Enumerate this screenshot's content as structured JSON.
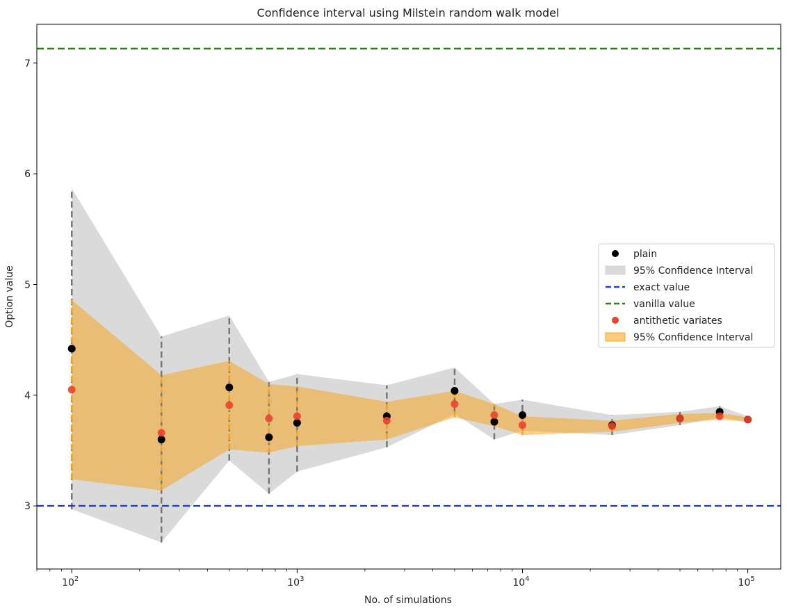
{
  "chart_data": {
    "type": "scatter",
    "title": "Confidence interval using Milstein random walk model",
    "xlabel": "No. of simulations",
    "ylabel": "Option value",
    "xscale": "log",
    "xlim": [
      70,
      140000
    ],
    "ylim": [
      2.43,
      7.35
    ],
    "yticks": [
      "3",
      "4",
      "5",
      "6",
      "7"
    ],
    "xticks": [
      "100",
      "1000",
      "10000",
      "100000"
    ],
    "xtick_base": "10",
    "xtick_exponents": [
      "2",
      "3",
      "4",
      "5"
    ],
    "legend_position": "center-right",
    "x": [
      100,
      250,
      500,
      750,
      1000,
      2500,
      5000,
      7500,
      10000,
      25000,
      50000,
      75000,
      100000
    ],
    "plain": {
      "name": "plain",
      "color": "#000000",
      "values": [
        4.42,
        3.6,
        4.07,
        3.62,
        3.75,
        3.81,
        4.04,
        3.76,
        3.82,
        3.73,
        3.79,
        3.85,
        3.78
      ],
      "ci_lower": [
        2.97,
        2.67,
        3.41,
        3.11,
        3.31,
        3.53,
        3.83,
        3.6,
        3.68,
        3.64,
        3.73,
        3.8,
        3.76
      ],
      "ci_upper": [
        5.87,
        4.53,
        4.72,
        4.12,
        4.19,
        4.09,
        4.25,
        3.92,
        3.96,
        3.82,
        3.85,
        3.9,
        3.81
      ],
      "ci_name": "95% Confidence Interval",
      "ci_color": "#d3d3d3"
    },
    "antithetic": {
      "name": "antithetic variates",
      "color": "#e8452c",
      "values": [
        4.05,
        3.66,
        3.91,
        3.79,
        3.81,
        3.77,
        3.92,
        3.82,
        3.73,
        3.72,
        3.79,
        3.81,
        3.78
      ],
      "ci_lower": [
        3.24,
        3.14,
        3.51,
        3.48,
        3.54,
        3.6,
        3.8,
        3.72,
        3.64,
        3.67,
        3.75,
        3.78,
        3.76
      ],
      "ci_upper": [
        4.86,
        4.18,
        4.31,
        4.1,
        4.08,
        3.94,
        4.04,
        3.92,
        3.81,
        3.77,
        3.83,
        3.84,
        3.8
      ],
      "ci_name": "95% Confidence Interval",
      "ci_color": "#f5a623"
    },
    "reference_lines": [
      {
        "name": "exact value",
        "y": 3.0,
        "color": "#1f3fe0"
      },
      {
        "name": "vanilla value",
        "y": 7.13,
        "color": "#2d7a1f"
      }
    ],
    "legend": [
      {
        "label": "plain",
        "kind": "dot",
        "color": "#000000"
      },
      {
        "label": "95% Confidence Interval",
        "kind": "patch",
        "color": "#d3d3d3"
      },
      {
        "label": "exact value",
        "kind": "dash",
        "color": "#1f3fe0"
      },
      {
        "label": "vanilla value",
        "kind": "dash",
        "color": "#2d7a1f"
      },
      {
        "label": "antithetic variates",
        "kind": "dot",
        "color": "#e8452c"
      },
      {
        "label": "95% Confidence Interval",
        "kind": "patch",
        "color": "#f5a623"
      }
    ]
  }
}
